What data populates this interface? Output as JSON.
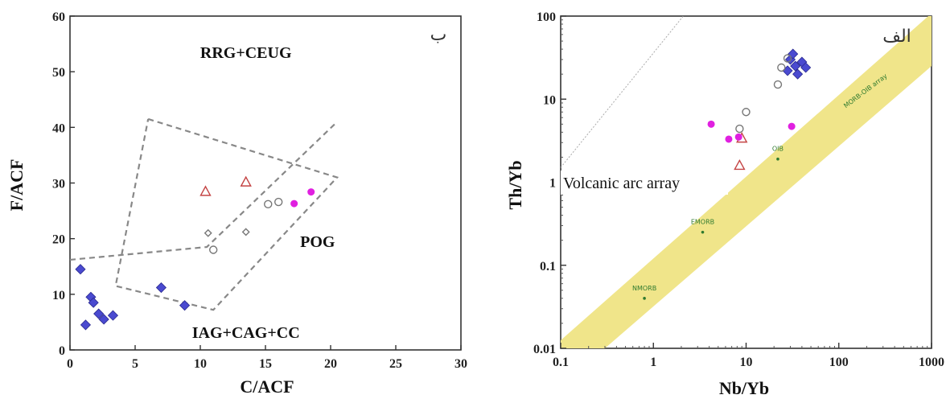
{
  "chart_data": [
    {
      "type": "scatter",
      "panel_label": "ب",
      "xlabel": "C/ACF",
      "ylabel": "F/ACF",
      "xlim": [
        0,
        30
      ],
      "ylim": [
        0,
        60
      ],
      "xticks": [
        "0",
        "5",
        "10",
        "15",
        "20",
        "25",
        "30"
      ],
      "yticks": [
        "0",
        "10",
        "20",
        "30",
        "40",
        "50",
        "60"
      ],
      "field_labels": [
        {
          "text": "RRG+CEUG",
          "x": 13.5,
          "y": 53.5
        },
        {
          "text": "POG",
          "x": 19.0,
          "y": 19.5
        },
        {
          "text": "IAG+CAG+CC",
          "x": 13.5,
          "y": 3.2
        }
      ],
      "boundaries": [
        {
          "style": "dashed",
          "points": [
            [
              6.0,
              41.5
            ],
            [
              20.5,
              31.0
            ],
            [
              11.0,
              7.2
            ],
            [
              3.5,
              11.5
            ],
            [
              6.0,
              41.5
            ]
          ]
        },
        {
          "style": "dashed",
          "points": [
            [
              0,
              16.2
            ],
            [
              10.5,
              18.5
            ],
            [
              20.5,
              41.0
            ]
          ]
        }
      ],
      "series": [
        {
          "marker": "diamond",
          "color": "#4a4ad0",
          "points": [
            [
              0.8,
              14.5
            ],
            [
              1.2,
              4.5
            ],
            [
              1.6,
              9.5
            ],
            [
              1.8,
              8.5
            ],
            [
              2.2,
              6.5
            ],
            [
              2.6,
              5.5
            ],
            [
              3.3,
              6.2
            ],
            [
              7.0,
              11.2
            ],
            [
              8.8,
              8.0
            ]
          ]
        },
        {
          "marker": "triangle-open",
          "color": "#c44444",
          "points": [
            [
              10.4,
              28.5
            ],
            [
              13.5,
              30.2
            ]
          ]
        },
        {
          "marker": "circle-open",
          "color": "#777777",
          "points": [
            [
              11.0,
              18.0
            ],
            [
              15.2,
              26.2
            ],
            [
              16.0,
              26.6
            ]
          ]
        },
        {
          "marker": "diamond-open",
          "color": "#777777",
          "points": [
            [
              10.6,
              21.0
            ],
            [
              13.5,
              21.2
            ]
          ]
        },
        {
          "marker": "circle-filled",
          "color": "#e020e0",
          "points": [
            [
              17.2,
              26.3
            ],
            [
              18.5,
              28.4
            ]
          ]
        }
      ]
    },
    {
      "type": "scatter",
      "panel_label": "الف",
      "xlabel": "Nb/Yb",
      "ylabel": "Th/Yb",
      "xscale": "log",
      "yscale": "log",
      "xlim": [
        0.1,
        1000
      ],
      "ylim": [
        0.01,
        100
      ],
      "xticks": [
        "0.1",
        "1",
        "10",
        "100",
        "1000"
      ],
      "yticks": [
        "0.01",
        "0.1",
        "1",
        "10",
        "100"
      ],
      "array_label": "Volcanic arc array",
      "band_label": "MORB-OIB array",
      "band_points": [
        "NMORB",
        "EMORB",
        "OIB"
      ],
      "series": [
        {
          "marker": "diamond",
          "color": "#4a4ad0",
          "points": [
            [
              30,
              30
            ],
            [
              34,
              25
            ],
            [
              40,
              28
            ],
            [
              36,
              20
            ],
            [
              28,
              22
            ],
            [
              44,
              24
            ],
            [
              32,
              35
            ]
          ]
        },
        {
          "marker": "circle-open",
          "color": "#777777",
          "points": [
            [
              8.5,
              4.4
            ],
            [
              10.0,
              7.0
            ],
            [
              22,
              15
            ],
            [
              24,
              24
            ],
            [
              28,
              31
            ]
          ]
        },
        {
          "marker": "triangle-open",
          "color": "#c44444",
          "points": [
            [
              8.5,
              1.6
            ],
            [
              9.0,
              3.4
            ]
          ]
        },
        {
          "marker": "circle-filled",
          "color": "#e020e0",
          "points": [
            [
              4.2,
              5.0
            ],
            [
              6.5,
              3.3
            ],
            [
              8.3,
              3.5
            ],
            [
              31,
              4.7
            ]
          ]
        }
      ]
    }
  ]
}
